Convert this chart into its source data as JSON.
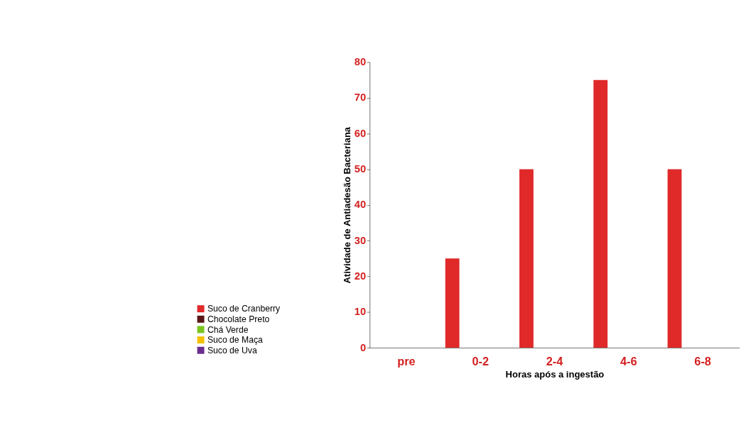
{
  "chart_data": {
    "type": "bar",
    "xlabel": "Horas após a ingestão",
    "ylabel": "Atividade de Antiadesão Bacteriana",
    "categories": [
      "pre",
      "0-2",
      "2-4",
      "4-6",
      "6-8"
    ],
    "series": [
      {
        "name": "Suco de Cranberry",
        "color": "#e02a2a",
        "values": [
          0,
          25,
          50,
          75,
          50
        ]
      },
      {
        "name": "Chocolate Preto",
        "color": "#5a1616",
        "values": [
          0,
          0,
          0,
          0,
          0
        ]
      },
      {
        "name": "Chá Verde",
        "color": "#7ac520",
        "values": [
          0,
          0,
          0,
          0,
          0
        ]
      },
      {
        "name": "Suco de Maça",
        "color": "#f5c000",
        "values": [
          0,
          0,
          0,
          0,
          0
        ]
      },
      {
        "name": "Suco de Uva",
        "color": "#6b2d90",
        "values": [
          0,
          0,
          0,
          0,
          0
        ]
      }
    ],
    "ylim": [
      0,
      80
    ],
    "yticks": [
      0,
      10,
      20,
      30,
      40,
      50,
      60,
      70,
      80
    ],
    "grid": false,
    "legend": "bottom left"
  }
}
